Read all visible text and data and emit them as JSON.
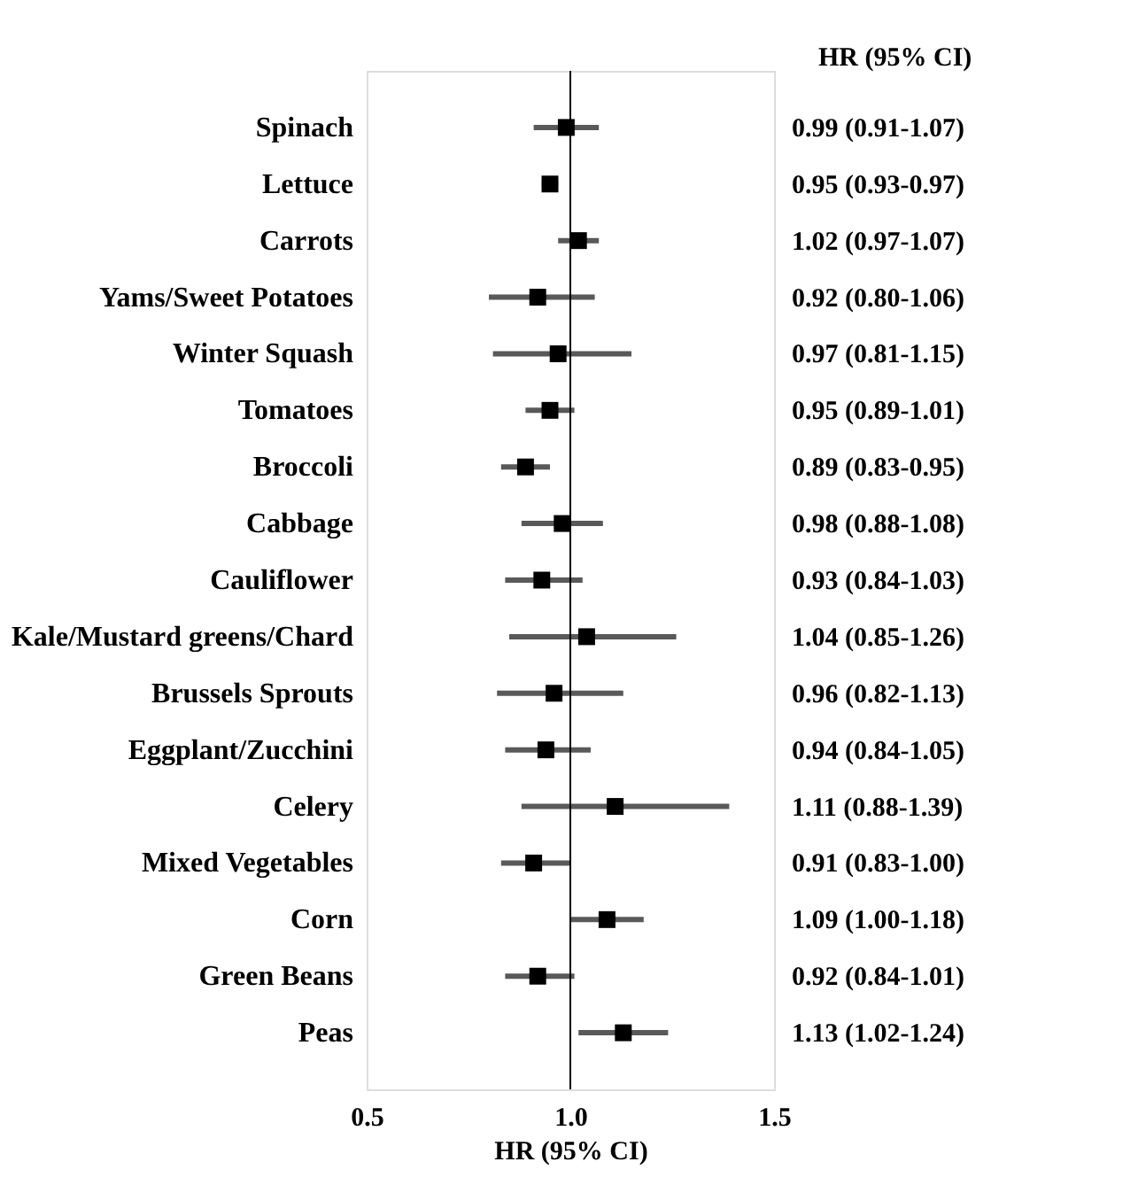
{
  "chart_data": {
    "type": "scatter",
    "orientation": "horizontal",
    "xlabel": "HR (95% CI)",
    "categories": [
      "Spinach",
      "Lettuce",
      "Carrots",
      "Yams/Sweet Potatoes",
      "Winter Squash",
      "Tomatoes",
      "Broccoli",
      "Cabbage",
      "Cauliflower",
      "Kale/Mustard greens/Chard",
      "Brussels Sprouts",
      "Eggplant/Zucchini",
      "Celery",
      "Mixed Vegetables",
      "Corn",
      "Green Beans",
      "Peas"
    ],
    "series": [
      {
        "color": "#000000",
        "values": [
          0.99,
          0.95,
          1.02,
          0.92,
          0.97,
          0.95,
          0.89,
          0.98,
          0.93,
          1.04,
          0.96,
          0.94,
          1.11,
          0.91,
          1.09,
          0.92,
          1.13
        ],
        "errors": [
          [
            0.91,
            1.07
          ],
          [
            0.93,
            0.97
          ],
          [
            0.97,
            1.07
          ],
          [
            0.8,
            1.06
          ],
          [
            0.81,
            1.15
          ],
          [
            0.89,
            1.01
          ],
          [
            0.83,
            0.95
          ],
          [
            0.88,
            1.08
          ],
          [
            0.84,
            1.03
          ],
          [
            0.85,
            1.26
          ],
          [
            0.82,
            1.13
          ],
          [
            0.84,
            1.05
          ],
          [
            0.88,
            1.39
          ],
          [
            0.83,
            1.0
          ],
          [
            1.0,
            1.18
          ],
          [
            0.84,
            1.01
          ],
          [
            1.02,
            1.24
          ]
        ],
        "value_labels": [
          "0.99 (0.91-1.07)",
          "0.95 (0.93-0.97)",
          "1.02 (0.97-1.07)",
          "0.92 (0.80-1.06)",
          "0.97 (0.81-1.15)",
          "0.95 (0.89-1.01)",
          "0.89 (0.83-0.95)",
          "0.98 (0.88-1.08)",
          "0.93 (0.84-1.03)",
          "1.04 (0.85-1.26)",
          "0.96 (0.82-1.13)",
          "0.94 (0.84-1.05)",
          "1.11 (0.88-1.39)",
          "0.91 (0.83-1.00)",
          "1.09 (1.00-1.18)",
          "0.92 (0.84-1.01)",
          "1.13 (1.02-1.24)"
        ]
      }
    ],
    "xlim": [
      0.5,
      1.5
    ],
    "xticks": [
      0.5,
      {
        "value": 1,
        "label": "1.0"
      },
      1.5
    ],
    "ref_lines": [
      {
        "axis": "x",
        "value": 1,
        "color": "#000000"
      }
    ],
    "annotations": [
      "HR (95% CI)"
    ],
    "marker": "square",
    "grid": false
  }
}
